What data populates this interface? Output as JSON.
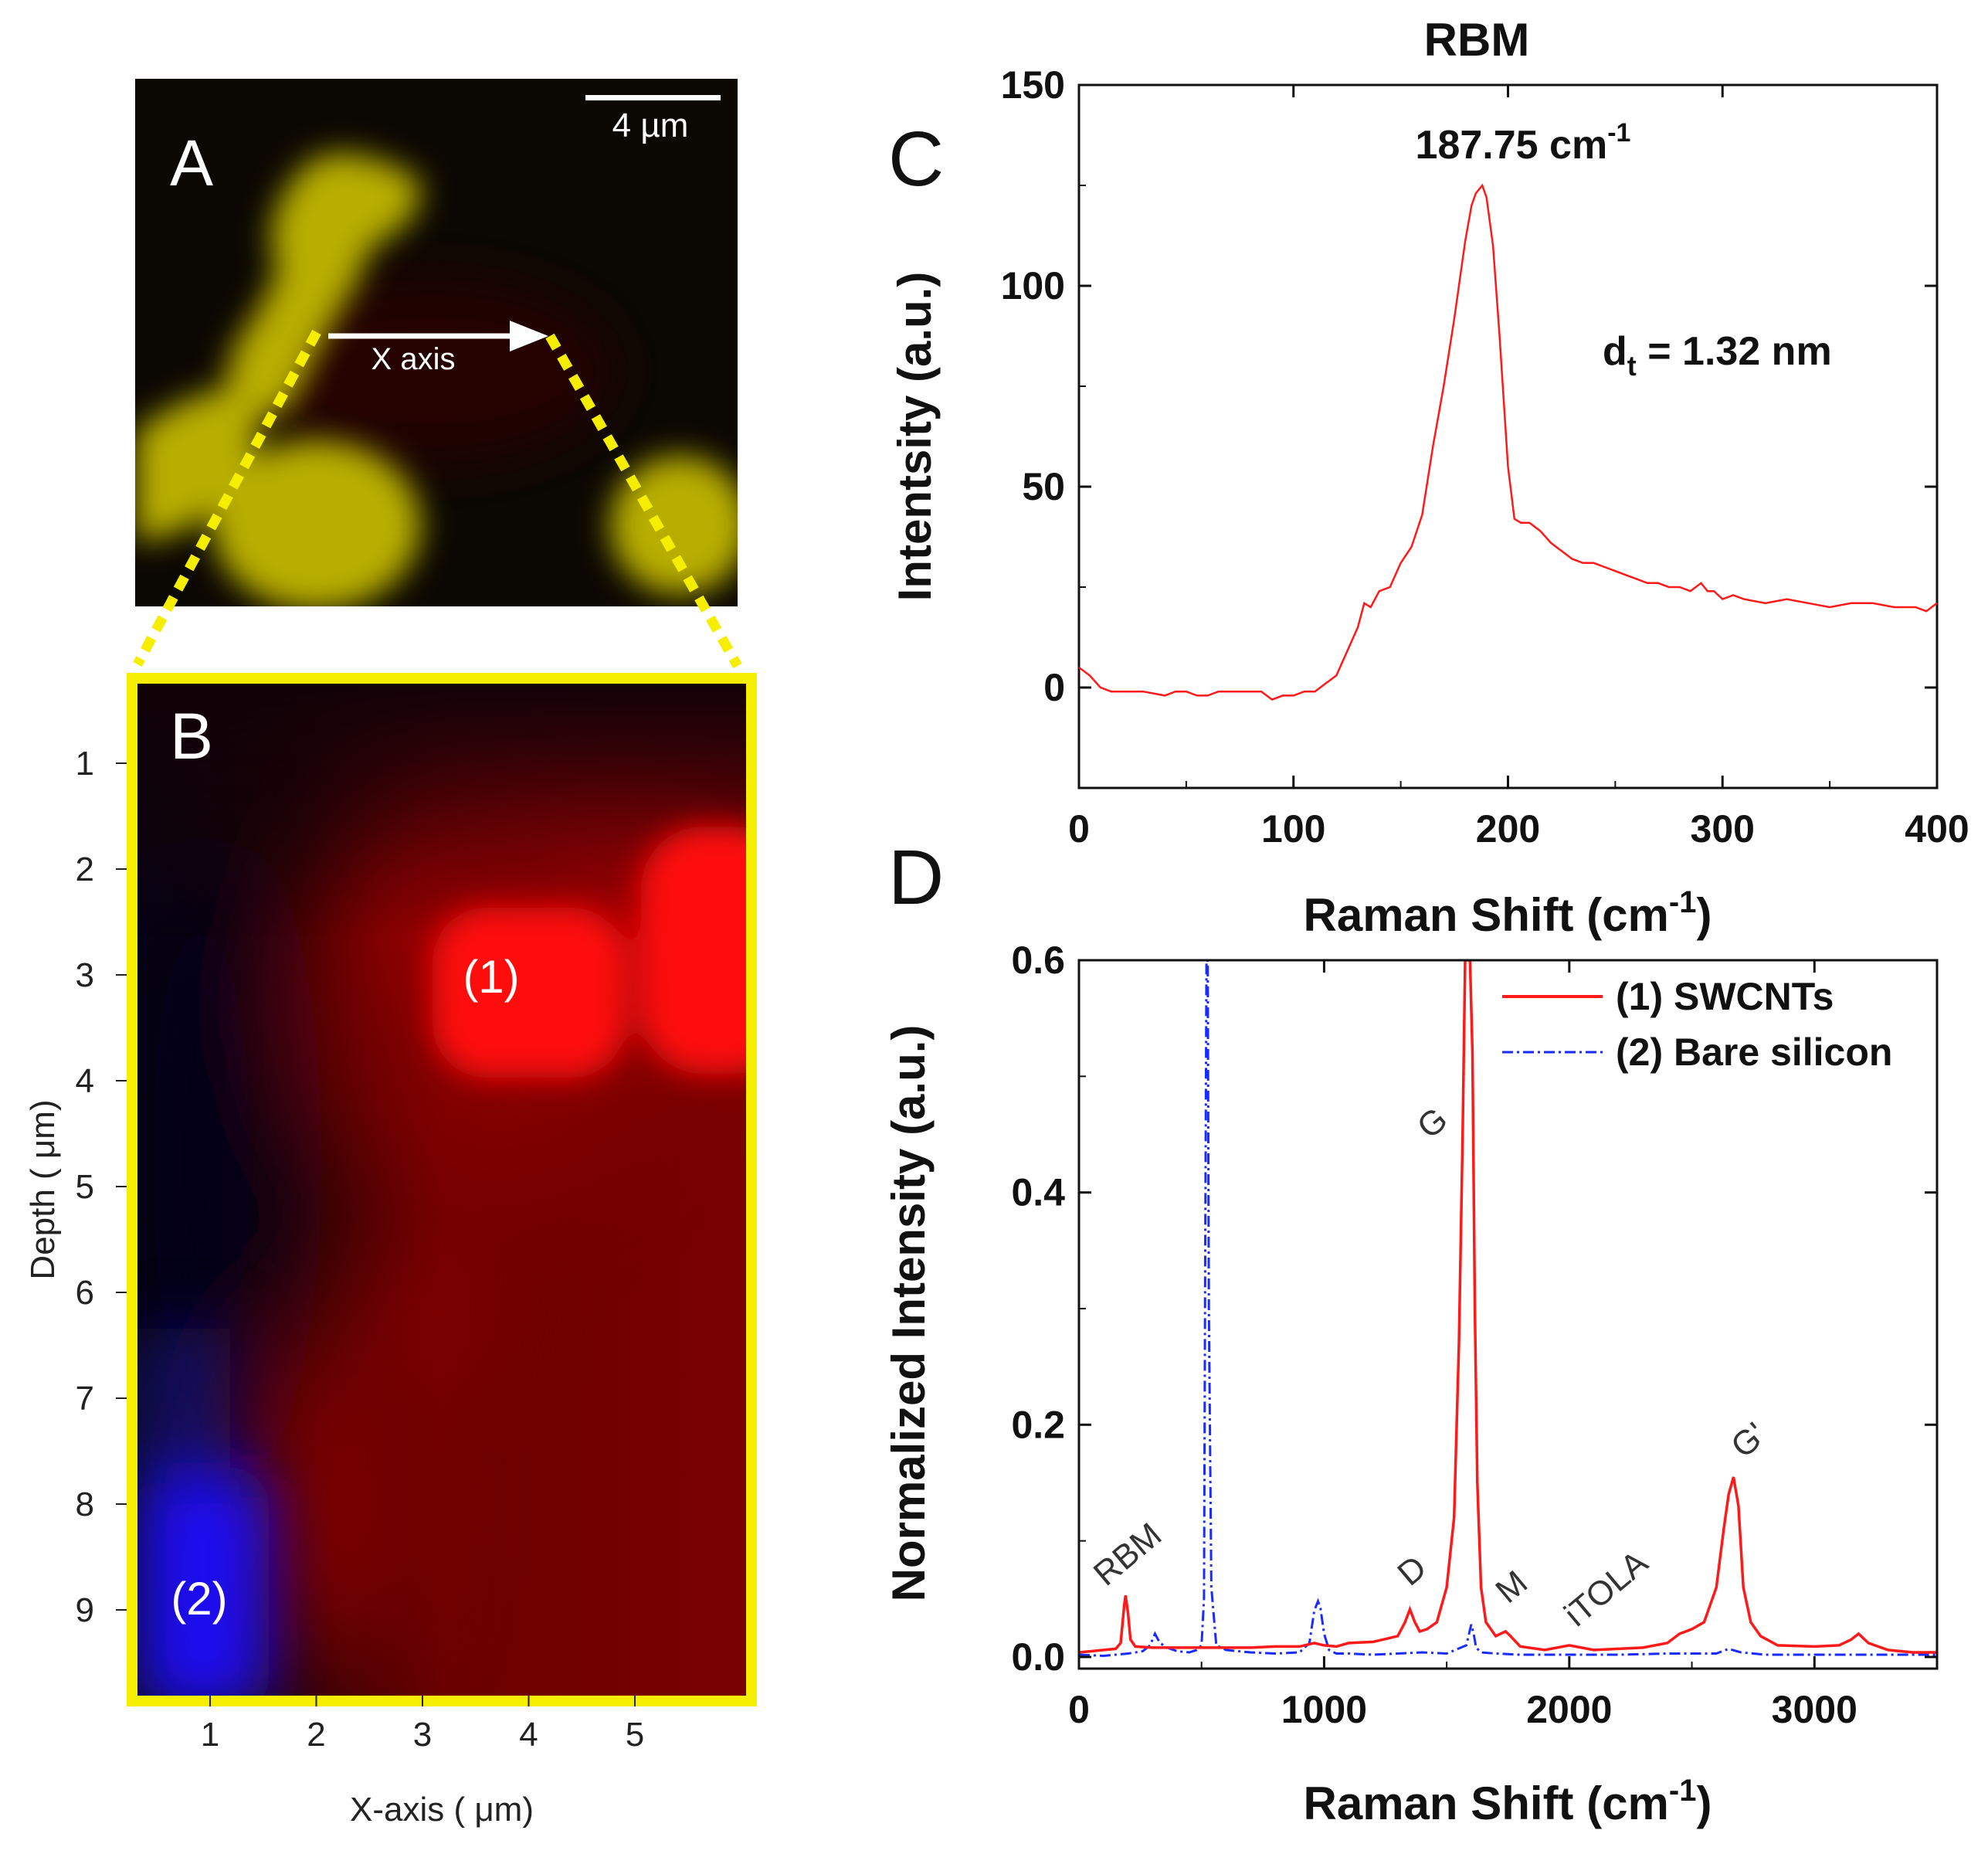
{
  "panels": {
    "a": {
      "letter": "A",
      "scale_bar": "4 µm",
      "arrow_label": "X axis"
    },
    "b": {
      "letter": "B",
      "region1": "(1)",
      "region2": "(2)",
      "xlabel": "X-axis ( μm)",
      "ylabel": "Depth ( μm)",
      "xticks": [
        "1",
        "2",
        "3",
        "4",
        "5"
      ],
      "yticks": [
        "1",
        "2",
        "3",
        "4",
        "5",
        "6",
        "7",
        "8",
        "9"
      ]
    },
    "c": {
      "letter": "C"
    },
    "d": {
      "letter": "D"
    }
  },
  "colors": {
    "swcnt": "#ff1a1a",
    "silicon": "#1a2bff",
    "highlight": "#f5ee00"
  },
  "chart_data": [
    {
      "id": "C",
      "type": "line",
      "title": "RBM",
      "xlabel": "Raman Shift (cm",
      "xlabel_sup": "-1",
      "xlabel_end": ")",
      "ylabel": "Intentsity (a.u.)",
      "xlim": [
        0,
        400
      ],
      "ylim": [
        -25,
        150
      ],
      "xticks": [
        0,
        100,
        200,
        300,
        400
      ],
      "yticks": [
        0,
        50,
        100,
        150
      ],
      "annotations": {
        "peak_label": "187.75 cm",
        "peak_label_sup": "-1",
        "dt_label_d": "d",
        "dt_label_sub": "t",
        "dt_label_rest": " = 1.32 nm"
      },
      "series": [
        {
          "name": "RBM spectrum",
          "x": [
            0,
            5,
            10,
            15,
            20,
            25,
            30,
            40,
            45,
            50,
            55,
            60,
            65,
            70,
            75,
            80,
            85,
            90,
            95,
            100,
            105,
            110,
            115,
            120,
            125,
            130,
            133,
            136,
            140,
            145,
            150,
            155,
            160,
            165,
            170,
            175,
            180,
            183,
            185,
            188,
            190,
            193,
            196,
            200,
            203,
            206,
            210,
            215,
            220,
            225,
            230,
            235,
            240,
            245,
            250,
            255,
            260,
            265,
            270,
            275,
            280,
            285,
            290,
            293,
            296,
            300,
            305,
            310,
            320,
            330,
            340,
            350,
            360,
            370,
            380,
            390,
            395,
            400
          ],
          "values": [
            5,
            3,
            0,
            -1,
            -1,
            -1,
            -1,
            -2,
            -1,
            -1,
            -2,
            -2,
            -1,
            -1,
            -1,
            -1,
            -1,
            -3,
            -2,
            -2,
            -1,
            -1,
            1,
            3,
            9,
            15,
            21,
            20,
            24,
            25,
            31,
            35,
            43,
            60,
            75,
            92,
            111,
            120,
            123,
            125,
            122,
            110,
            88,
            55,
            42,
            41,
            41,
            39,
            36,
            34,
            32,
            31,
            31,
            30,
            29,
            28,
            27,
            26,
            26,
            25,
            25,
            24,
            26,
            24,
            24,
            22,
            23,
            22,
            21,
            22,
            21,
            20,
            21,
            21,
            20,
            20,
            19,
            21
          ],
          "color": "#ff1a1a"
        }
      ]
    },
    {
      "id": "D",
      "type": "line",
      "xlabel": "Raman Shift (cm",
      "xlabel_sup": "-1",
      "xlabel_end": ")",
      "ylabel": "Normalized Intensity (a.u.)",
      "xlim": [
        0,
        3500
      ],
      "ylim": [
        -0.01,
        0.6
      ],
      "xticks": [
        0,
        1000,
        2000,
        3000
      ],
      "yticks": [
        0.0,
        0.2,
        0.4,
        0.6
      ],
      "ytick_labels": [
        "0.0",
        "0.2",
        "0.4",
        "0.6"
      ],
      "legend_position": "top-right",
      "peak_labels": [
        {
          "text": "RBM",
          "x": 110,
          "y": 0.06
        },
        {
          "text": "D",
          "x": 1350,
          "y": 0.06
        },
        {
          "text": "G",
          "x": 1430,
          "y": 0.445
        },
        {
          "text": "M",
          "x": 1750,
          "y": 0.045
        },
        {
          "text": "iTOLA",
          "x": 2030,
          "y": 0.025
        },
        {
          "text": "G'",
          "x": 2710,
          "y": 0.17
        }
      ],
      "series": [
        {
          "name": "(1) SWCNTs",
          "color": "#ff1a1a",
          "style": "solid",
          "x": [
            0,
            50,
            100,
            150,
            170,
            185,
            190,
            200,
            210,
            230,
            300,
            400,
            500,
            600,
            700,
            800,
            900,
            960,
            1000,
            1050,
            1100,
            1200,
            1300,
            1330,
            1350,
            1370,
            1390,
            1420,
            1460,
            1500,
            1530,
            1550,
            1565,
            1575,
            1585,
            1595,
            1605,
            1615,
            1625,
            1640,
            1660,
            1700,
            1740,
            1760,
            1800,
            1900,
            2000,
            2100,
            2200,
            2300,
            2400,
            2450,
            2500,
            2550,
            2600,
            2630,
            2650,
            2670,
            2690,
            2710,
            2740,
            2780,
            2850,
            3000,
            3100,
            3150,
            3180,
            3220,
            3300,
            3400,
            3500
          ],
          "values": [
            0.004,
            0.005,
            0.006,
            0.007,
            0.012,
            0.045,
            0.053,
            0.038,
            0.015,
            0.009,
            0.008,
            0.008,
            0.008,
            0.008,
            0.008,
            0.009,
            0.009,
            0.012,
            0.01,
            0.009,
            0.012,
            0.013,
            0.018,
            0.03,
            0.041,
            0.03,
            0.022,
            0.024,
            0.03,
            0.06,
            0.12,
            0.27,
            0.45,
            0.6,
            0.6,
            0.6,
            0.52,
            0.3,
            0.15,
            0.06,
            0.03,
            0.018,
            0.022,
            0.018,
            0.009,
            0.006,
            0.01,
            0.006,
            0.007,
            0.008,
            0.012,
            0.02,
            0.024,
            0.03,
            0.06,
            0.11,
            0.14,
            0.155,
            0.13,
            0.06,
            0.03,
            0.018,
            0.01,
            0.009,
            0.01,
            0.015,
            0.02,
            0.012,
            0.006,
            0.004,
            0.004
          ]
        },
        {
          "name": "(2) Bare silicon",
          "color": "#1a2bff",
          "style": "dashdot",
          "x": [
            0,
            100,
            200,
            260,
            290,
            310,
            330,
            360,
            400,
            450,
            480,
            500,
            510,
            515,
            520,
            525,
            530,
            540,
            560,
            600,
            700,
            800,
            900,
            940,
            960,
            975,
            985,
            1000,
            1020,
            1050,
            1100,
            1200,
            1300,
            1400,
            1500,
            1580,
            1600,
            1610,
            1620,
            1640,
            1700,
            1800,
            2000,
            2200,
            2400,
            2600,
            2650,
            2700,
            2800,
            3000,
            3200,
            3500
          ],
          "values": [
            0.002,
            0.001,
            0.003,
            0.005,
            0.01,
            0.02,
            0.012,
            0.008,
            0.005,
            0.004,
            0.006,
            0.01,
            0.05,
            0.35,
            0.6,
            0.6,
            0.3,
            0.06,
            0.01,
            0.006,
            0.004,
            0.003,
            0.004,
            0.012,
            0.04,
            0.048,
            0.042,
            0.02,
            0.006,
            0.003,
            0.003,
            0.002,
            0.003,
            0.004,
            0.003,
            0.01,
            0.028,
            0.02,
            0.008,
            0.004,
            0.003,
            0.002,
            0.002,
            0.002,
            0.003,
            0.003,
            0.007,
            0.004,
            0.002,
            0.002,
            0.002,
            0.002
          ]
        }
      ]
    }
  ]
}
